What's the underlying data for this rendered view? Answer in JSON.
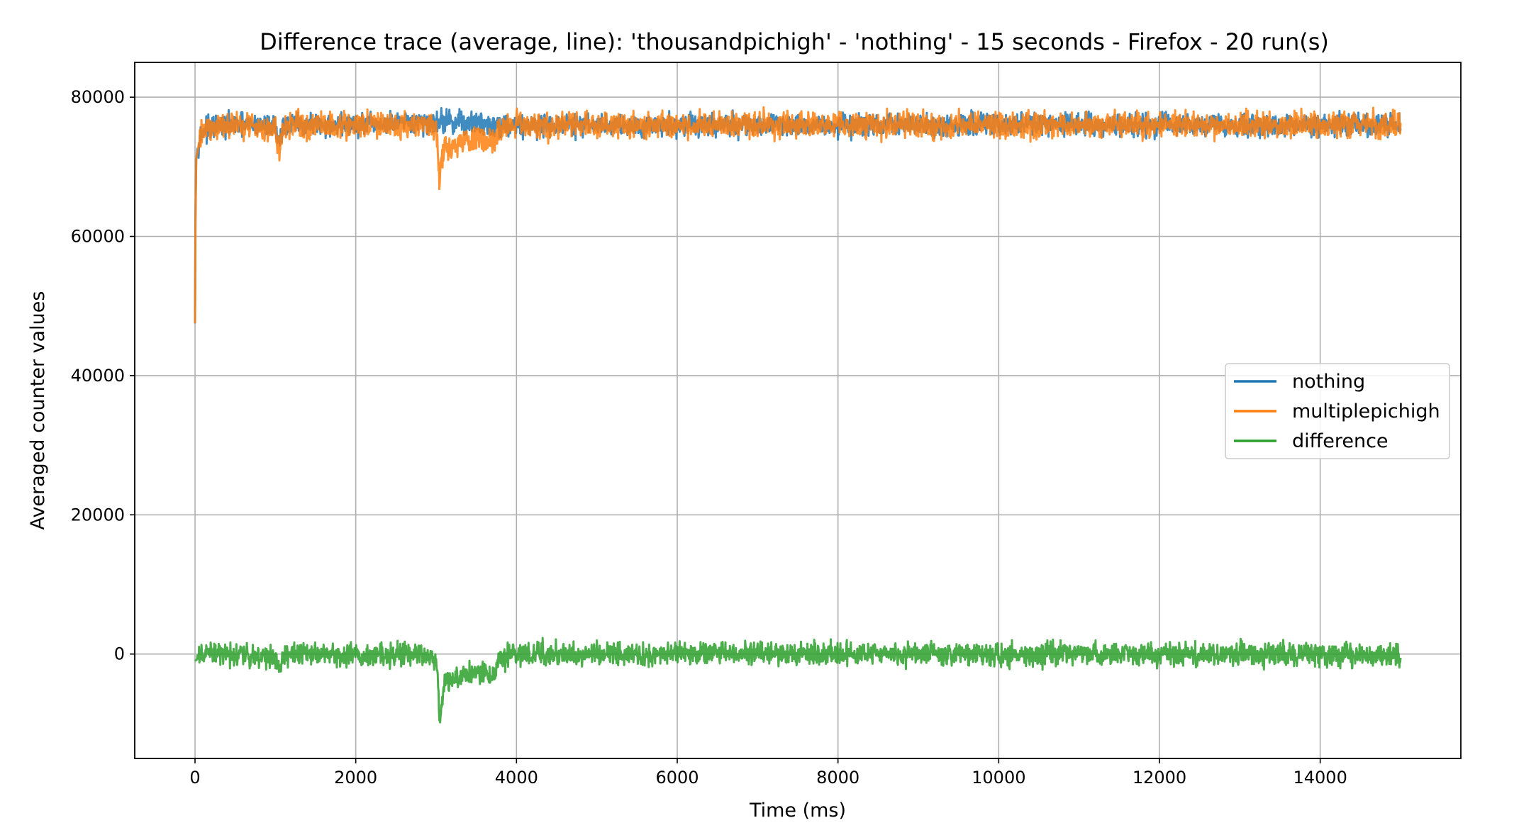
{
  "chart_data": {
    "type": "line",
    "title": "Difference trace (average, line): 'thousandpichigh' - 'nothing' - 15 seconds - Firefox - 20 run(s)",
    "xlabel": "Time (ms)",
    "ylabel": "Averaged counter values",
    "xlim": [
      -750,
      15750
    ],
    "ylim": [
      -15000,
      85000
    ],
    "x_ticks": [
      0,
      2000,
      4000,
      6000,
      8000,
      10000,
      12000,
      14000
    ],
    "y_ticks": [
      0,
      20000,
      40000,
      60000,
      80000
    ],
    "x_tick_labels": [
      "0",
      "2000",
      "4000",
      "6000",
      "8000",
      "10000",
      "12000",
      "14000"
    ],
    "y_tick_labels": [
      "0",
      "20000",
      "40000",
      "60000",
      "80000"
    ],
    "grid": true,
    "legend_position": "center-right",
    "x_range": [
      0,
      15000
    ],
    "series": [
      {
        "name": "nothing",
        "color": "#1f77b4",
        "points": [
          [
            0,
            47500
          ],
          [
            5,
            62000
          ],
          [
            15,
            71000
          ],
          [
            40,
            73500
          ],
          [
            100,
            75200
          ],
          [
            300,
            75800
          ],
          [
            600,
            76000
          ],
          [
            1000,
            75800
          ],
          [
            1050,
            73500
          ],
          [
            1100,
            76000
          ],
          [
            2000,
            76000
          ],
          [
            2800,
            76200
          ],
          [
            3000,
            76500
          ],
          [
            3030,
            76600
          ],
          [
            3200,
            76500
          ],
          [
            3500,
            76300
          ],
          [
            3800,
            76000
          ],
          [
            4000,
            76000
          ],
          [
            6000,
            76000
          ],
          [
            8000,
            76000
          ],
          [
            10000,
            76000
          ],
          [
            12000,
            76000
          ],
          [
            14000,
            76000
          ],
          [
            15000,
            76000
          ]
        ],
        "noise": 1500
      },
      {
        "name": "multiplepichigh",
        "color": "#ff7f0e",
        "points": [
          [
            0,
            47500
          ],
          [
            5,
            62000
          ],
          [
            15,
            71000
          ],
          [
            40,
            73500
          ],
          [
            100,
            75200
          ],
          [
            300,
            75800
          ],
          [
            600,
            76000
          ],
          [
            1000,
            75500
          ],
          [
            1050,
            72000
          ],
          [
            1100,
            75800
          ],
          [
            2000,
            76000
          ],
          [
            2800,
            76000
          ],
          [
            3000,
            75500
          ],
          [
            3020,
            73000
          ],
          [
            3040,
            67000
          ],
          [
            3060,
            70000
          ],
          [
            3100,
            72500
          ],
          [
            3300,
            73500
          ],
          [
            3600,
            74000
          ],
          [
            3700,
            73000
          ],
          [
            3800,
            75500
          ],
          [
            4000,
            76000
          ],
          [
            6000,
            76000
          ],
          [
            8000,
            76000
          ],
          [
            10000,
            76000
          ],
          [
            12000,
            76000
          ],
          [
            14000,
            76000
          ],
          [
            15000,
            76000
          ]
        ],
        "noise": 1700
      },
      {
        "name": "difference",
        "color": "#2ca02c",
        "points": [
          [
            0,
            -1000
          ],
          [
            100,
            0
          ],
          [
            600,
            0
          ],
          [
            1000,
            -500
          ],
          [
            1050,
            -2500
          ],
          [
            1100,
            0
          ],
          [
            2000,
            0
          ],
          [
            2800,
            0
          ],
          [
            3000,
            -500
          ],
          [
            3020,
            -3000
          ],
          [
            3045,
            -10000
          ],
          [
            3070,
            -6500
          ],
          [
            3100,
            -4000
          ],
          [
            3300,
            -3000
          ],
          [
            3600,
            -2500
          ],
          [
            3700,
            -3500
          ],
          [
            3800,
            -500
          ],
          [
            4000,
            0
          ],
          [
            6000,
            0
          ],
          [
            8000,
            0
          ],
          [
            10000,
            0
          ],
          [
            12000,
            0
          ],
          [
            14000,
            0
          ],
          [
            15000,
            0
          ]
        ],
        "noise": 1500
      }
    ]
  }
}
